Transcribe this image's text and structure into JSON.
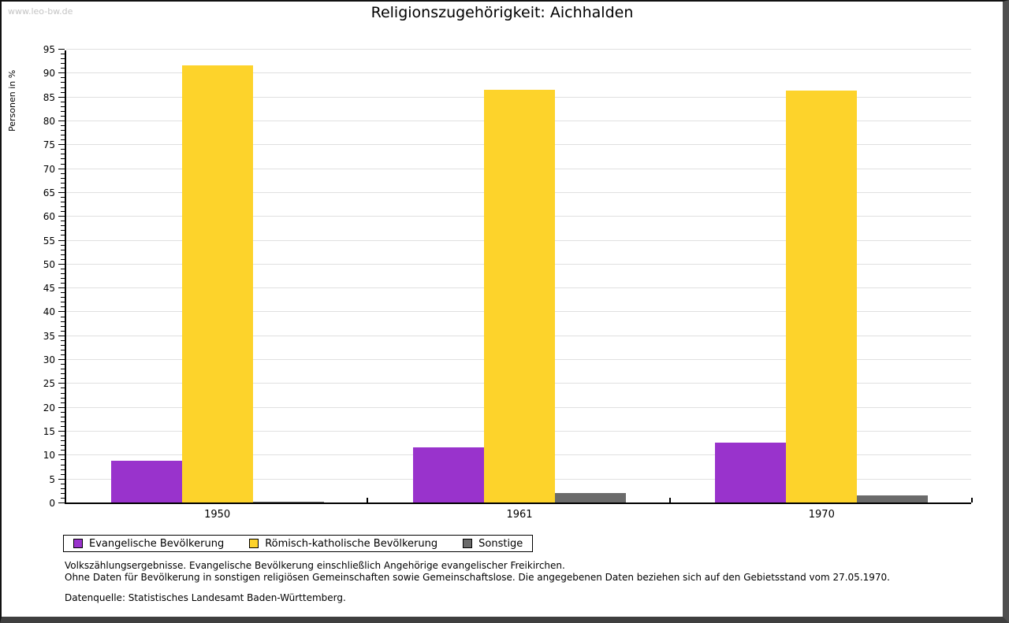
{
  "watermark": "www.leo-bw.de",
  "title": "Religionszugehörigkeit: Aichhalden",
  "chart_data": {
    "type": "bar",
    "title": "Religionszugehörigkeit: Aichhalden",
    "xlabel": "",
    "ylabel": "Personen in %",
    "categories": [
      "1950",
      "1961",
      "1970"
    ],
    "series": [
      {
        "name": "Evangelische Bevölkerung",
        "color": "#9933cc",
        "values": [
          8.7,
          11.5,
          12.5
        ]
      },
      {
        "name": "Römisch-katholische Bevölkerung",
        "color": "#fdd32b",
        "values": [
          91.5,
          86.4,
          86.2
        ]
      },
      {
        "name": "Sonstige",
        "color": "#6b6b6b",
        "values": [
          0.15,
          2.0,
          1.5
        ]
      }
    ],
    "ylim": [
      0,
      95
    ],
    "ytick_step": 5,
    "minor_tick_step": 1,
    "grid": true,
    "legend_position": "bottom-left"
  },
  "footnotes": {
    "line1": "Volkszählungsergebnisse. Evangelische Bevölkerung einschließlich Angehörige evangelischer Freikirchen.",
    "line2": "Ohne Daten für Bevölkerung in sonstigen religiösen Gemeinschaften sowie Gemeinschaftslose. Die angegebenen Daten beziehen sich auf den Gebietsstand vom 27.05.1970.",
    "source": "Datenquelle: Statistisches Landesamt Baden-Württemberg."
  }
}
